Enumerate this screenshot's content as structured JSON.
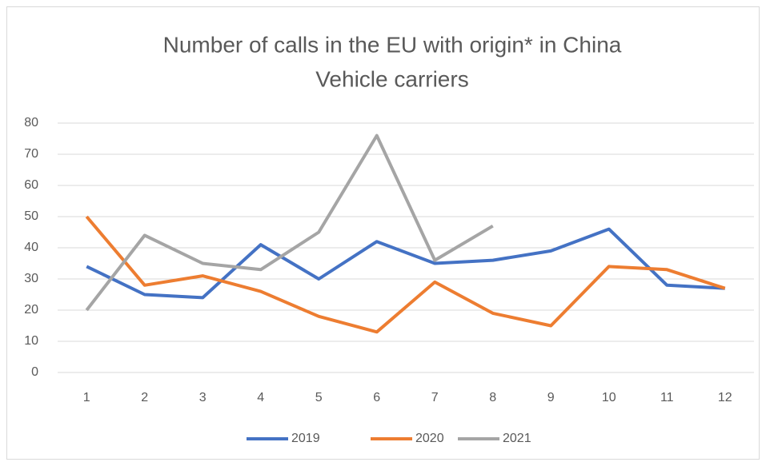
{
  "chart_data": {
    "type": "line",
    "title": "Number of calls in the EU with origin* in China",
    "subtitle": "Vehicle carriers",
    "categories": [
      "1",
      "2",
      "3",
      "4",
      "5",
      "6",
      "7",
      "8",
      "9",
      "10",
      "11",
      "12"
    ],
    "series": [
      {
        "name": "2019",
        "color": "#4472c4",
        "values": [
          34,
          25,
          24,
          41,
          30,
          42,
          35,
          36,
          39,
          46,
          28,
          27
        ]
      },
      {
        "name": "2020",
        "color": "#ed7d31",
        "values": [
          50,
          28,
          31,
          26,
          18,
          13,
          29,
          19,
          15,
          34,
          33,
          27
        ]
      },
      {
        "name": "2021",
        "color": "#a5a5a5",
        "values": [
          20,
          44,
          35,
          33,
          45,
          76,
          36,
          47,
          null,
          null,
          null,
          null
        ]
      }
    ],
    "ylim": [
      0,
      80
    ],
    "yticks": [
      0,
      10,
      20,
      30,
      40,
      50,
      60,
      70,
      80
    ],
    "grid": true,
    "legend": "bottom"
  }
}
